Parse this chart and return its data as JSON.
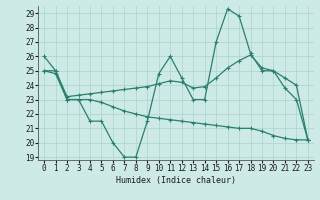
{
  "xlabel": "Humidex (Indice chaleur)",
  "x": [
    0,
    1,
    2,
    3,
    4,
    5,
    6,
    7,
    8,
    9,
    10,
    11,
    12,
    13,
    14,
    15,
    16,
    17,
    18,
    19,
    20,
    21,
    22,
    23
  ],
  "line1": [
    26,
    25,
    23,
    23,
    21.5,
    21.5,
    20,
    19,
    19,
    21.5,
    24.8,
    26.0,
    24.5,
    23.0,
    23.0,
    27.0,
    29.3,
    28.8,
    26.2,
    25.0,
    25.0,
    23.8,
    23.0,
    20.2
  ],
  "line2": [
    25.0,
    25.0,
    23.2,
    23.3,
    23.4,
    23.5,
    23.6,
    23.7,
    23.8,
    23.9,
    24.1,
    24.3,
    24.2,
    23.8,
    23.9,
    24.5,
    25.2,
    25.7,
    26.1,
    25.2,
    25.0,
    24.5,
    24.0,
    20.2
  ],
  "line3": [
    25.0,
    24.8,
    23.0,
    23.0,
    23.0,
    22.8,
    22.5,
    22.2,
    22.0,
    21.8,
    21.7,
    21.6,
    21.5,
    21.4,
    21.3,
    21.2,
    21.1,
    21.0,
    21.0,
    20.8,
    20.5,
    20.3,
    20.2,
    20.2
  ],
  "line_color": "#2a7f6f",
  "bg_color": "#ceeae6",
  "grid_color": "#aad4ce",
  "ylim": [
    18.8,
    29.5
  ],
  "xlim": [
    -0.5,
    23.5
  ],
  "yticks": [
    19,
    20,
    21,
    22,
    23,
    24,
    25,
    26,
    27,
    28,
    29
  ],
  "xticks": [
    0,
    1,
    2,
    3,
    4,
    5,
    6,
    7,
    8,
    9,
    10,
    11,
    12,
    13,
    14,
    15,
    16,
    17,
    18,
    19,
    20,
    21,
    22,
    23
  ]
}
